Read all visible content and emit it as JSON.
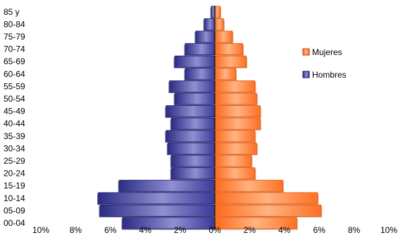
{
  "chart_data": {
    "type": "bar",
    "orientation": "horizontal",
    "layout": "population-pyramid",
    "categories": [
      "85 y",
      "80-84",
      "75-79",
      "70-74",
      "65-69",
      "60-64",
      "55-59",
      "50-54",
      "45-49",
      "40-44",
      "35-39",
      "30-34",
      "25-29",
      "20-24",
      "15-19",
      "10-14",
      "05-09",
      "00-04"
    ],
    "series": [
      {
        "name": "Mujeres",
        "side": "right",
        "color": "#ff7b33",
        "values": [
          0.3,
          0.5,
          1.0,
          1.6,
          1.8,
          1.2,
          2.3,
          2.4,
          2.6,
          2.6,
          2.3,
          2.4,
          2.1,
          2.3,
          3.9,
          5.9,
          6.1,
          4.7
        ]
      },
      {
        "name": "Hombres",
        "side": "left",
        "color": "#3d3d9c",
        "values": [
          0.2,
          0.6,
          1.1,
          1.7,
          2.3,
          1.7,
          2.6,
          2.3,
          2.8,
          2.5,
          2.8,
          2.7,
          2.5,
          2.5,
          5.5,
          6.7,
          6.6,
          5.3
        ]
      }
    ],
    "xlim": [
      -10,
      10
    ],
    "xticks": [
      -10,
      -8,
      -6,
      -4,
      -2,
      0,
      2,
      4,
      6,
      8,
      10
    ],
    "xtick_labels": [
      "10%",
      "8%",
      "6%",
      "4%",
      "2%",
      "0%",
      "2%",
      "4%",
      "6%",
      "8%",
      "10%"
    ],
    "legend": {
      "position": "right",
      "entries": [
        "Mujeres",
        "Hombres"
      ]
    },
    "grid": false,
    "title": "",
    "xlabel": "",
    "ylabel": ""
  }
}
